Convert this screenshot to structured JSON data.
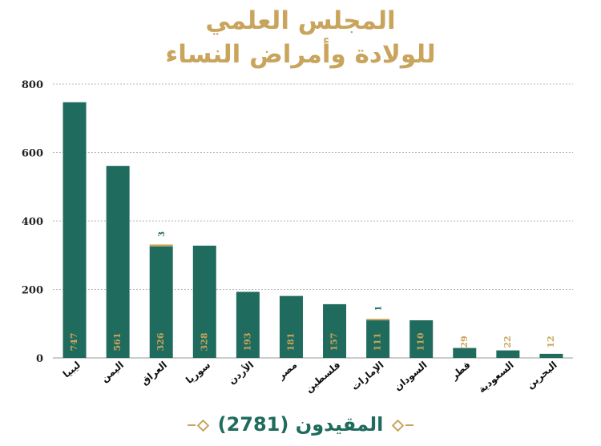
{
  "header": {
    "title_line1": "المجلس العلمي",
    "title_line2": "للولادة وأمراض النساء"
  },
  "footer": {
    "label": "المقيدون",
    "total": "(2781)"
  },
  "colors": {
    "bar": "#1f6b5e",
    "accent": "#c9a45c",
    "grid": "#b8b8b8"
  },
  "chart_data": {
    "type": "bar",
    "title": "",
    "xlabel": "",
    "ylabel": "",
    "ylim": [
      0,
      800
    ],
    "yticks": [
      0,
      200,
      400,
      600,
      800
    ],
    "grid": true,
    "categories": [
      "ليبيا",
      "اليمن",
      "العراق",
      "سوريا",
      "الأردن",
      "مصر",
      "فلسطين",
      "الإمارات",
      "السودان",
      "قطر",
      "السعودية",
      "البحرين"
    ],
    "series": [
      {
        "values": [
          747,
          561,
          326,
          328,
          193,
          181,
          157,
          111,
          110,
          29,
          22,
          12
        ]
      },
      {
        "values": [
          0,
          0,
          3,
          0,
          0,
          0,
          0,
          1,
          0,
          0,
          0,
          0
        ]
      }
    ],
    "data_labels": [
      "747",
      "561",
      "326",
      "328",
      "193",
      "181",
      "157",
      "111",
      "110",
      "29",
      "22",
      "12"
    ],
    "top_labels": [
      "",
      "",
      "3",
      "",
      "",
      "",
      "",
      "1",
      "",
      "",
      "",
      ""
    ]
  }
}
